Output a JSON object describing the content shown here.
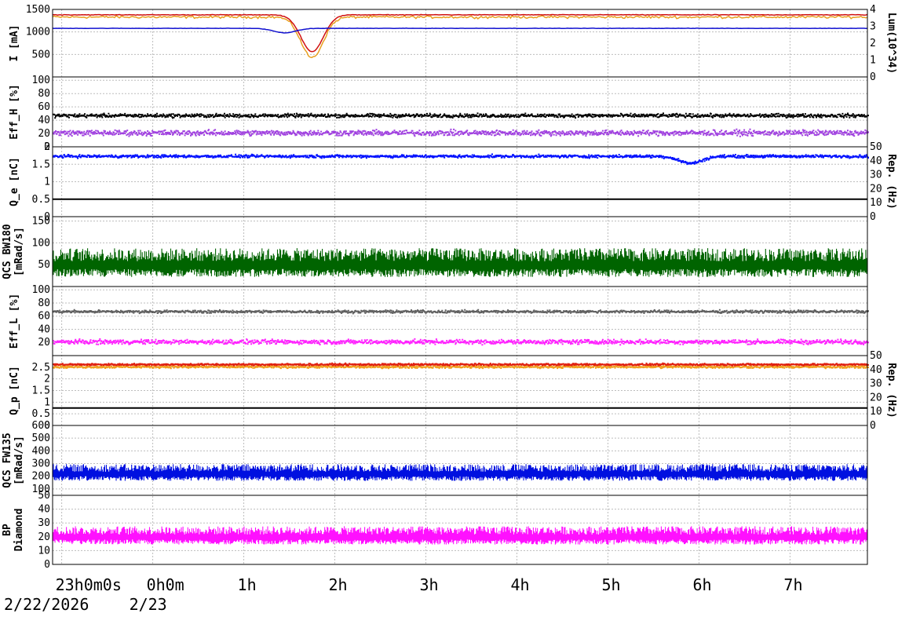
{
  "chart_data": {
    "type": "line",
    "time_axis": {
      "labels": [
        {
          "main": "23",
          "sup": "h",
          "rest": "0",
          "sup2": "m",
          "rest2": "0",
          "sup3": "s",
          "hour": -1
        },
        {
          "main": "0",
          "sup": "h",
          "rest": "0",
          "sup2": "m",
          "hour": 0
        },
        {
          "main": "1",
          "sup": "h",
          "hour": 1
        },
        {
          "main": "2",
          "sup": "h",
          "hour": 2
        },
        {
          "main": "3",
          "sup": "h",
          "hour": 3
        },
        {
          "main": "4",
          "sup": "h",
          "hour": 4
        },
        {
          "main": "5",
          "sup": "h",
          "hour": 5
        },
        {
          "main": "6",
          "sup": "h",
          "hour": 6
        },
        {
          "main": "7",
          "sup": "h",
          "hour": 7
        }
      ],
      "dates": [
        "2/22/2026",
        "2/23"
      ],
      "range_hours": [
        -1.1,
        7.85
      ]
    },
    "panels": [
      {
        "id": "current",
        "ylabel_left": "I [mA]",
        "ylabel_right": "Lum(10^34)",
        "yrange": [
          0,
          1500
        ],
        "yticks": [
          500,
          1000,
          1500
        ],
        "right_range": [
          0,
          4
        ],
        "right_ticks": [
          0,
          1,
          2,
          3,
          4
        ],
        "series": [
          {
            "color": "#e8a020",
            "kind": "line",
            "level": 1330,
            "noise": 40,
            "dip_center": 1.75,
            "dip_depth": 900
          },
          {
            "color": "#d01010",
            "kind": "line",
            "level": 1380,
            "noise": 10,
            "dip_center": 1.75,
            "dip_depth": 820
          },
          {
            "color": "#1010d0",
            "kind": "line",
            "level": 1080,
            "noise": 5,
            "dip_center": 1.45,
            "dip_depth": 100
          }
        ]
      },
      {
        "id": "eff_h",
        "ylabel_left": "Eff_H [%]",
        "yrange": [
          0,
          105
        ],
        "yticks": [
          0,
          20,
          40,
          60,
          80,
          100
        ],
        "series": [
          {
            "color": "#000000",
            "kind": "dots",
            "level": 48,
            "noise": 4
          },
          {
            "color": "#a040e0",
            "kind": "dots",
            "level": 22,
            "noise": 6
          }
        ]
      },
      {
        "id": "qe",
        "ylabel_left": "Q_e [nC]",
        "ylabel_right": "Rep. (Hz)",
        "yrange": [
          0,
          2
        ],
        "yticks": [
          0,
          0.5,
          1,
          1.5,
          2
        ],
        "right_range": [
          0,
          50
        ],
        "right_ticks": [
          0,
          10,
          20,
          30,
          40,
          50
        ],
        "series": [
          {
            "color": "#0010ff",
            "kind": "dots",
            "level": 1.75,
            "noise": 0.06,
            "dip_center": 5.9,
            "dip_depth": 0.2
          },
          {
            "color": "#000000",
            "kind": "flat",
            "level": 0.5
          }
        ]
      },
      {
        "id": "qcs_bw180",
        "ylabel_left": "QCS BW180",
        "ylabel_left2": "[mRad/s]",
        "yrange": [
          0,
          160
        ],
        "yticks": [
          50,
          100,
          150
        ],
        "series": [
          {
            "color": "#006400",
            "kind": "spiky",
            "level": 40,
            "noise": 30
          }
        ]
      },
      {
        "id": "eff_l",
        "ylabel_left": "Eff_L [%]",
        "yrange": [
          0,
          105
        ],
        "yticks": [
          20,
          40,
          60,
          80,
          100
        ],
        "series": [
          {
            "color": "#606060",
            "kind": "dots",
            "level": 68,
            "noise": 3
          },
          {
            "color": "#ff20ff",
            "kind": "dots",
            "level": 22,
            "noise": 5
          }
        ]
      },
      {
        "id": "qp",
        "ylabel_left": "Q_p [nC]",
        "ylabel_right": "Rep. (Hz)",
        "yrange": [
          0,
          3
        ],
        "yticks": [
          0,
          0.5,
          1,
          1.5,
          2,
          2.5
        ],
        "right_range": [
          0,
          50
        ],
        "right_ticks": [
          0,
          10,
          20,
          30,
          40,
          50
        ],
        "series": [
          {
            "color": "#f0a020",
            "kind": "dots",
            "level": 2.55,
            "noise": 0.08
          },
          {
            "color": "#e02010",
            "kind": "dots",
            "level": 2.65,
            "noise": 0.06
          },
          {
            "color": "#000000",
            "kind": "flat",
            "level": 0.75
          }
        ]
      },
      {
        "id": "qcs_fw135",
        "ylabel_left": "QCS FW135",
        "ylabel_left2": "[mRad/s]",
        "yrange": [
          50,
          600
        ],
        "yticks": [
          50,
          100,
          200,
          300,
          400,
          500,
          600
        ],
        "series": [
          {
            "color": "#0010e0",
            "kind": "spiky",
            "level": 200,
            "noise": 60
          }
        ]
      },
      {
        "id": "bp_diamond",
        "ylabel_left": "BP",
        "ylabel_left2": "Diamond",
        "yrange": [
          0,
          50
        ],
        "yticks": [
          0,
          10,
          20,
          30,
          40
        ],
        "series": [
          {
            "color": "#ff10ff",
            "kind": "spiky",
            "level": 18,
            "noise": 6
          }
        ]
      }
    ],
    "grid": true
  }
}
